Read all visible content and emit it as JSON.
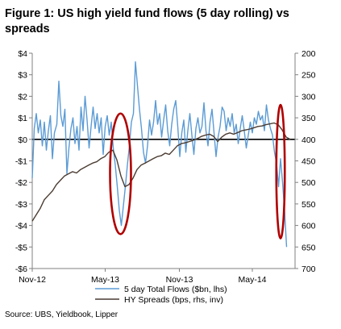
{
  "figure": {
    "title": "Figure 1: US high yield fund flows (5 day rolling) vs spreads",
    "source": "Source:  UBS, Yieldbook, Lipper"
  },
  "colors": {
    "flows": "#5b9bd5",
    "spreads": "#4a3c32",
    "zero_line": "#000000",
    "ellipse": "#b00000",
    "axis": "#808080"
  },
  "chart_data": {
    "type": "line",
    "title": "Figure 1: US high yield fund flows (5 day rolling) vs spreads",
    "x_tick_labels": [
      "Nov-12",
      "May-13",
      "Nov-13",
      "May-14"
    ],
    "x_tick_dates": [
      "2012-11-01",
      "2013-05-01",
      "2013-11-01",
      "2014-05-01"
    ],
    "x_range": [
      "2012-11-01",
      "2014-08-15"
    ],
    "y_left": {
      "range": [
        -6,
        4
      ],
      "ticks": [
        4,
        3,
        2,
        1,
        0,
        -1,
        -2,
        -3,
        -4,
        -5,
        -6
      ],
      "tick_labels": [
        "$4",
        "$3",
        "$2",
        "$1",
        "$0",
        "-$1",
        "-$2",
        "-$3",
        "-$4",
        "-$5",
        "-$6"
      ]
    },
    "y_right": {
      "range": [
        200,
        700
      ],
      "inverted": true,
      "ticks": [
        200,
        250,
        300,
        350,
        400,
        450,
        500,
        550,
        600,
        650,
        700
      ],
      "tick_labels": [
        "200",
        "250",
        "300",
        "350",
        "400",
        "450",
        "500",
        "550",
        "600",
        "650",
        "700"
      ]
    },
    "zero_line": 0,
    "legend_position": "bottom",
    "series": [
      {
        "name": "5 day Total Flows ($bn, lhs)",
        "axis": "left",
        "points": [
          [
            "2012-11-01",
            -1.8
          ],
          [
            "2012-11-06",
            0.5
          ],
          [
            "2012-11-11",
            1.2
          ],
          [
            "2012-11-16",
            0.3
          ],
          [
            "2012-11-21",
            0.9
          ],
          [
            "2012-11-26",
            -0.3
          ],
          [
            "2012-12-01",
            0.8
          ],
          [
            "2012-12-06",
            -0.5
          ],
          [
            "2012-12-11",
            0.4
          ],
          [
            "2012-12-16",
            1.1
          ],
          [
            "2012-12-21",
            -0.9
          ],
          [
            "2012-12-26",
            0.3
          ],
          [
            "2013-01-01",
            0.7
          ],
          [
            "2013-01-06",
            2.7
          ],
          [
            "2013-01-11",
            1.1
          ],
          [
            "2013-01-16",
            0.6
          ],
          [
            "2013-01-21",
            1.4
          ],
          [
            "2013-01-26",
            -1.6
          ],
          [
            "2013-01-31",
            -0.4
          ],
          [
            "2013-02-05",
            0.5
          ],
          [
            "2013-02-10",
            1.0
          ],
          [
            "2013-02-15",
            -0.2
          ],
          [
            "2013-02-20",
            0.6
          ],
          [
            "2013-02-25",
            -0.5
          ],
          [
            "2013-03-02",
            1.5
          ],
          [
            "2013-03-07",
            0.4
          ],
          [
            "2013-03-12",
            2.0
          ],
          [
            "2013-03-17",
            0.9
          ],
          [
            "2013-03-22",
            -0.4
          ],
          [
            "2013-03-27",
            0.6
          ],
          [
            "2013-04-01",
            1.5
          ],
          [
            "2013-04-06",
            0.5
          ],
          [
            "2013-04-11",
            1.2
          ],
          [
            "2013-04-16",
            0.3
          ],
          [
            "2013-04-21",
            1.0
          ],
          [
            "2013-04-26",
            -0.7
          ],
          [
            "2013-05-01",
            0.6
          ],
          [
            "2013-05-06",
            1.1
          ],
          [
            "2013-05-11",
            0.2
          ],
          [
            "2013-05-16",
            0.8
          ],
          [
            "2013-05-21",
            -0.4
          ],
          [
            "2013-05-26",
            -1.2
          ],
          [
            "2013-05-31",
            -2.2
          ],
          [
            "2013-06-05",
            -3.3
          ],
          [
            "2013-06-10",
            -4.0
          ],
          [
            "2013-06-15",
            -3.1
          ],
          [
            "2013-06-20",
            -2.2
          ],
          [
            "2013-06-25",
            -1.2
          ],
          [
            "2013-06-30",
            -0.3
          ],
          [
            "2013-07-05",
            0.8
          ],
          [
            "2013-07-10",
            1.2
          ],
          [
            "2013-07-15",
            3.6
          ],
          [
            "2013-07-20",
            2.5
          ],
          [
            "2013-07-25",
            1.4
          ],
          [
            "2013-07-30",
            0.5
          ],
          [
            "2013-08-04",
            -0.6
          ],
          [
            "2013-08-09",
            -1.1
          ],
          [
            "2013-08-14",
            -0.3
          ],
          [
            "2013-08-19",
            0.9
          ],
          [
            "2013-08-24",
            0.2
          ],
          [
            "2013-08-29",
            0.8
          ],
          [
            "2013-09-03",
            1.8
          ],
          [
            "2013-09-08",
            0.7
          ],
          [
            "2013-09-13",
            1.2
          ],
          [
            "2013-09-18",
            0.1
          ],
          [
            "2013-09-23",
            0.9
          ],
          [
            "2013-09-28",
            1.6
          ],
          [
            "2013-10-03",
            0.4
          ],
          [
            "2013-10-08",
            -0.3
          ],
          [
            "2013-10-13",
            0.7
          ],
          [
            "2013-10-18",
            1.4
          ],
          [
            "2013-10-23",
            1.8
          ],
          [
            "2013-10-28",
            0.6
          ],
          [
            "2013-11-02",
            -0.8
          ],
          [
            "2013-11-07",
            0.3
          ],
          [
            "2013-11-12",
            0.9
          ],
          [
            "2013-11-17",
            -0.6
          ],
          [
            "2013-11-22",
            0.4
          ],
          [
            "2013-11-27",
            1.2
          ],
          [
            "2013-12-02",
            0.2
          ],
          [
            "2013-12-07",
            -0.7
          ],
          [
            "2013-12-12",
            0.5
          ],
          [
            "2013-12-17",
            1.0
          ],
          [
            "2013-12-22",
            0.3
          ],
          [
            "2013-12-27",
            0.6
          ],
          [
            "2014-01-01",
            1.7
          ],
          [
            "2014-01-06",
            0.4
          ],
          [
            "2014-01-11",
            -0.3
          ],
          [
            "2014-01-16",
            0.8
          ],
          [
            "2014-01-21",
            1.4
          ],
          [
            "2014-01-26",
            0.3
          ],
          [
            "2014-01-31",
            -0.8
          ],
          [
            "2014-02-05",
            0.1
          ],
          [
            "2014-02-10",
            0.6
          ],
          [
            "2014-02-15",
            1.5
          ],
          [
            "2014-02-20",
            1.3
          ],
          [
            "2014-02-25",
            0.4
          ],
          [
            "2014-03-02",
            1.0
          ],
          [
            "2014-03-07",
            0.6
          ],
          [
            "2014-03-12",
            1.2
          ],
          [
            "2014-03-17",
            0.3
          ],
          [
            "2014-03-22",
            0.7
          ],
          [
            "2014-03-27",
            -0.2
          ],
          [
            "2014-04-01",
            0.5
          ],
          [
            "2014-04-06",
            1.1
          ],
          [
            "2014-04-11",
            0.4
          ],
          [
            "2014-04-16",
            -0.4
          ],
          [
            "2014-04-21",
            0.2
          ],
          [
            "2014-04-26",
            0.8
          ],
          [
            "2014-05-01",
            0.3
          ],
          [
            "2014-05-06",
            1.0
          ],
          [
            "2014-05-11",
            0.7
          ],
          [
            "2014-05-16",
            1.3
          ],
          [
            "2014-05-21",
            0.9
          ],
          [
            "2014-05-26",
            1.1
          ],
          [
            "2014-05-31",
            0.4
          ],
          [
            "2014-06-05",
            1.6
          ],
          [
            "2014-06-10",
            0.9
          ],
          [
            "2014-06-15",
            0.5
          ],
          [
            "2014-06-20",
            0.2
          ],
          [
            "2014-06-25",
            -0.6
          ],
          [
            "2014-06-30",
            -1.1
          ],
          [
            "2014-07-05",
            -2.2
          ],
          [
            "2014-07-10",
            -0.9
          ],
          [
            "2014-07-15",
            -2.0
          ],
          [
            "2014-07-20",
            -3.3
          ],
          [
            "2014-07-25",
            -5.0
          ]
        ]
      },
      {
        "name": "HY Spreads (bps, rhs, inv)",
        "axis": "right",
        "points": [
          [
            "2012-11-01",
            590
          ],
          [
            "2012-11-11",
            575
          ],
          [
            "2012-11-21",
            560
          ],
          [
            "2012-12-01",
            540
          ],
          [
            "2012-12-11",
            530
          ],
          [
            "2012-12-21",
            520
          ],
          [
            "2012-12-31",
            505
          ],
          [
            "2013-01-10",
            495
          ],
          [
            "2013-01-20",
            485
          ],
          [
            "2013-01-30",
            480
          ],
          [
            "2013-02-09",
            475
          ],
          [
            "2013-02-19",
            478
          ],
          [
            "2013-03-01",
            470
          ],
          [
            "2013-03-11",
            465
          ],
          [
            "2013-03-21",
            460
          ],
          [
            "2013-03-31",
            455
          ],
          [
            "2013-04-10",
            452
          ],
          [
            "2013-04-20",
            445
          ],
          [
            "2013-04-30",
            440
          ],
          [
            "2013-05-10",
            430
          ],
          [
            "2013-05-20",
            425
          ],
          [
            "2013-05-30",
            448
          ],
          [
            "2013-06-09",
            485
          ],
          [
            "2013-06-19",
            510
          ],
          [
            "2013-06-29",
            505
          ],
          [
            "2013-07-09",
            490
          ],
          [
            "2013-07-19",
            470
          ],
          [
            "2013-07-29",
            460
          ],
          [
            "2013-08-08",
            455
          ],
          [
            "2013-08-18",
            450
          ],
          [
            "2013-08-28",
            445
          ],
          [
            "2013-09-07",
            440
          ],
          [
            "2013-09-17",
            438
          ],
          [
            "2013-09-27",
            432
          ],
          [
            "2013-10-07",
            435
          ],
          [
            "2013-10-17",
            425
          ],
          [
            "2013-10-27",
            415
          ],
          [
            "2013-11-06",
            410
          ],
          [
            "2013-11-16",
            408
          ],
          [
            "2013-11-26",
            405
          ],
          [
            "2013-12-06",
            402
          ],
          [
            "2013-12-16",
            398
          ],
          [
            "2013-12-26",
            393
          ],
          [
            "2014-01-05",
            390
          ],
          [
            "2014-01-15",
            388
          ],
          [
            "2014-01-25",
            393
          ],
          [
            "2014-02-04",
            405
          ],
          [
            "2014-02-14",
            395
          ],
          [
            "2014-02-24",
            388
          ],
          [
            "2014-03-06",
            385
          ],
          [
            "2014-03-16",
            388
          ],
          [
            "2014-03-26",
            384
          ],
          [
            "2014-04-05",
            380
          ],
          [
            "2014-04-15",
            378
          ],
          [
            "2014-04-25",
            376
          ],
          [
            "2014-05-05",
            373
          ],
          [
            "2014-05-15",
            370
          ],
          [
            "2014-05-25",
            369
          ],
          [
            "2014-06-04",
            366
          ],
          [
            "2014-06-14",
            364
          ],
          [
            "2014-06-24",
            362
          ],
          [
            "2014-07-04",
            366
          ],
          [
            "2014-07-14",
            378
          ],
          [
            "2014-07-24",
            395
          ],
          [
            "2014-08-03",
            400
          ]
        ]
      }
    ],
    "annotations": [
      {
        "shape": "ellipse",
        "around": "2013 flow sell-off",
        "x_center": "2013-06-08",
        "y_center": -1.6,
        "x_span_days": 52,
        "y_half_span": 2.8
      },
      {
        "shape": "ellipse",
        "around": "2014 flow sell-off",
        "x_center": "2014-07-10",
        "y_center": -1.5,
        "x_span_days": 21,
        "y_half_span": 3.1
      }
    ]
  }
}
